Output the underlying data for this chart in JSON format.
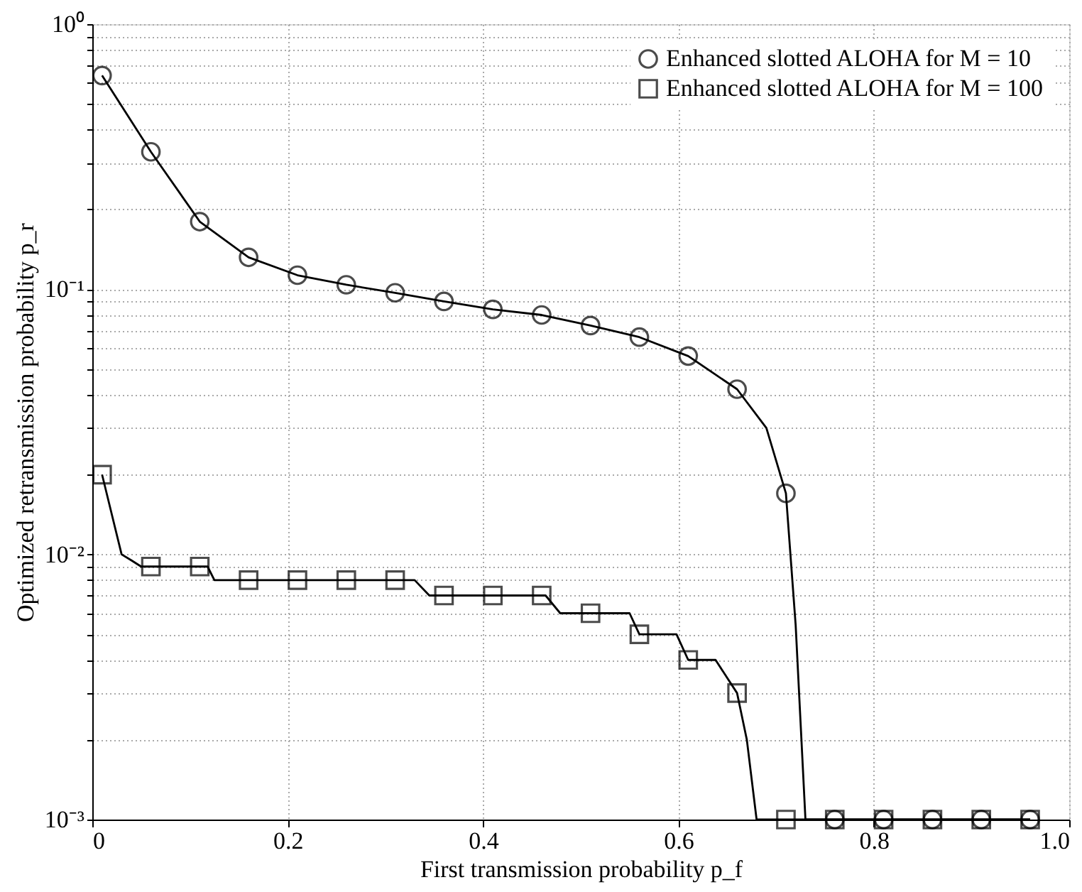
{
  "chart_data": {
    "type": "line",
    "xlabel": "First transmission probability p_f",
    "ylabel": "Optimized retransmission probability p_r",
    "log": "y",
    "grid": true,
    "legend": "top right",
    "xlim": [
      0,
      1
    ],
    "xticks": [
      0,
      0.2,
      0.4,
      0.6,
      0.8,
      {
        "value": 1,
        "label": "1.0"
      }
    ],
    "ylim": [
      0.001,
      1
    ],
    "yticks": [
      {
        "value": 0.001,
        "label": "10⁻³"
      },
      {
        "value": 0.002,
        "label": null
      },
      {
        "value": 0.003,
        "label": null
      },
      {
        "value": 0.004,
        "label": null
      },
      {
        "value": 0.005,
        "label": null
      },
      {
        "value": 0.006,
        "label": null
      },
      {
        "value": 0.007,
        "label": null
      },
      {
        "value": 0.008,
        "label": null
      },
      {
        "value": 0.009,
        "label": null
      },
      {
        "value": 0.01,
        "label": "10⁻²"
      },
      {
        "value": 0.02,
        "label": null
      },
      {
        "value": 0.03,
        "label": null
      },
      {
        "value": 0.04,
        "label": null
      },
      {
        "value": 0.05,
        "label": null
      },
      {
        "value": 0.06,
        "label": null
      },
      {
        "value": 0.07,
        "label": null
      },
      {
        "value": 0.08,
        "label": null
      },
      {
        "value": 0.09,
        "label": null
      },
      {
        "value": 0.1,
        "label": "10⁻¹"
      },
      {
        "value": 0.2,
        "label": null
      },
      {
        "value": 0.3,
        "label": null
      },
      {
        "value": 0.4,
        "label": null
      },
      {
        "value": 0.5,
        "label": null
      },
      {
        "value": 0.6,
        "label": null
      },
      {
        "value": 0.7,
        "label": null
      },
      {
        "value": 0.8,
        "label": null
      },
      {
        "value": 0.9,
        "label": null
      },
      {
        "value": 1,
        "label": "10⁰"
      }
    ],
    "series": [
      {
        "marker": "none",
        "color": "#000000",
        "x": [
          0.01,
          0.06,
          0.11,
          0.16,
          0.21,
          0.26,
          0.31,
          0.36,
          0.41,
          0.46,
          0.51,
          0.56,
          0.61,
          0.66,
          0.69,
          0.71,
          0.72,
          0.73,
          0.76,
          0.96
        ],
        "values": [
          0.64,
          0.33,
          0.18,
          0.132,
          0.113,
          0.104,
          0.097,
          0.09,
          0.084,
          0.08,
          0.073,
          0.066,
          0.056,
          0.042,
          0.03,
          0.017,
          0.0054,
          0.001,
          0.001,
          0.001
        ]
      },
      {
        "type": "scatter",
        "name": "Enhanced slotted ALOHA for M = 10",
        "marker": "circle",
        "color": "#000000",
        "x": [
          0.01,
          0.06,
          0.11,
          0.16,
          0.21,
          0.26,
          0.31,
          0.36,
          0.41,
          0.46,
          0.51,
          0.56,
          0.61,
          0.66,
          0.71,
          0.76,
          0.81,
          0.86,
          0.91,
          0.96
        ],
        "values": [
          0.64,
          0.33,
          0.18,
          0.132,
          0.113,
          0.104,
          0.097,
          0.09,
          0.084,
          0.08,
          0.073,
          0.066,
          0.056,
          0.042,
          0.017,
          0.001,
          0.001,
          0.001,
          0.001,
          0.001
        ]
      },
      {
        "marker": "none",
        "color": "#000000",
        "x": [
          0.01,
          0.03,
          0.04,
          0.05,
          0.118,
          0.125,
          0.33,
          0.345,
          0.464,
          0.479,
          0.55,
          0.56,
          0.598,
          0.61,
          0.638,
          0.66,
          0.67,
          0.68,
          0.96
        ],
        "values": [
          0.02,
          0.01,
          0.0095,
          0.009,
          0.009,
          0.008,
          0.008,
          0.007,
          0.007,
          0.006,
          0.006,
          0.005,
          0.005,
          0.004,
          0.004,
          0.003,
          0.002,
          0.001,
          0.001
        ]
      },
      {
        "type": "scatter",
        "name": "Enhanced slotted ALOHA for M = 100",
        "marker": "square",
        "color": "#000000",
        "x": [
          0.01,
          0.06,
          0.11,
          0.16,
          0.21,
          0.26,
          0.31,
          0.36,
          0.41,
          0.46,
          0.51,
          0.56,
          0.61,
          0.66,
          0.71,
          0.76,
          0.81,
          0.86,
          0.91,
          0.96
        ],
        "values": [
          0.02,
          0.009,
          0.009,
          0.008,
          0.008,
          0.008,
          0.008,
          0.007,
          0.007,
          0.007,
          0.006,
          0.005,
          0.004,
          0.003,
          0.001,
          0.001,
          0.001,
          0.001,
          0.001,
          0.001
        ]
      }
    ]
  }
}
